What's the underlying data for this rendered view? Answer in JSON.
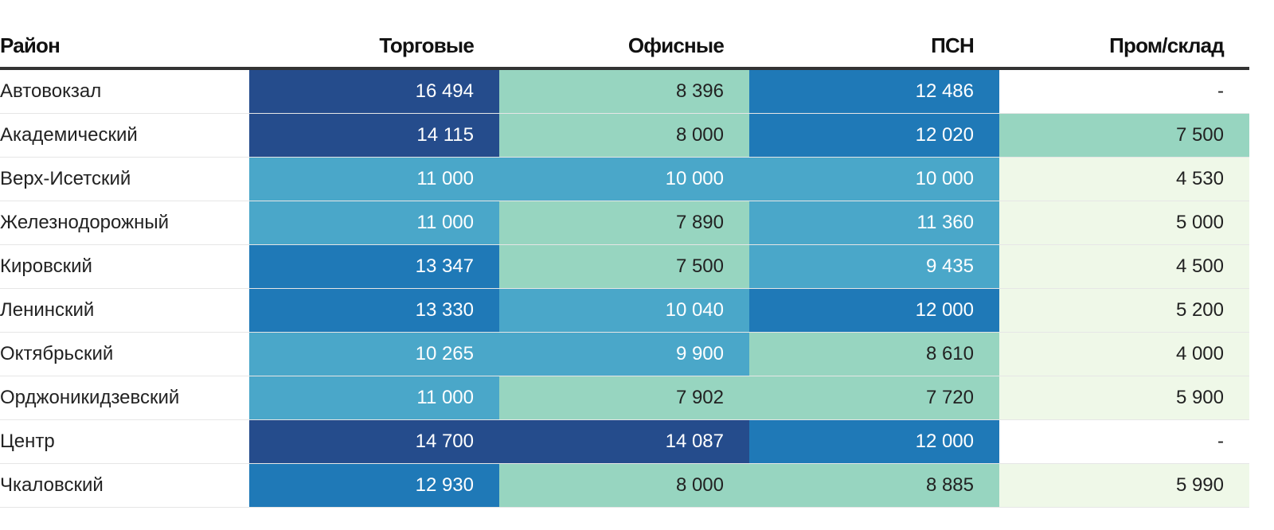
{
  "columns": [
    "Район",
    "Торговые",
    "Офисные",
    "ПСН",
    "Пром/склад"
  ],
  "color_scale": [
    "#ffffff",
    "#eff8e8",
    "#97d5c0",
    "#4aa7c9",
    "#1f79b7",
    "#254c8c"
  ],
  "rows": [
    {
      "name": "Автовокзал",
      "values": [
        "16 494",
        "8 396",
        "12 486",
        "-"
      ],
      "levels": [
        5,
        2,
        4,
        0
      ]
    },
    {
      "name": "Академический",
      "values": [
        "14 115",
        "8 000",
        "12 020",
        "7 500"
      ],
      "levels": [
        5,
        2,
        4,
        2
      ]
    },
    {
      "name": "Верх-Исетский",
      "values": [
        "11 000",
        "10 000",
        "10 000",
        "4 530"
      ],
      "levels": [
        3,
        3,
        3,
        1
      ]
    },
    {
      "name": "Железнодорожный",
      "values": [
        "11 000",
        "7 890",
        "11 360",
        "5 000"
      ],
      "levels": [
        3,
        2,
        3,
        1
      ]
    },
    {
      "name": "Кировский",
      "values": [
        "13 347",
        "7 500",
        "9 435",
        "4 500"
      ],
      "levels": [
        4,
        2,
        3,
        1
      ]
    },
    {
      "name": "Ленинский",
      "values": [
        "13 330",
        "10 040",
        "12 000",
        "5 200"
      ],
      "levels": [
        4,
        3,
        4,
        1
      ]
    },
    {
      "name": "Октябрьский",
      "values": [
        "10 265",
        "9 900",
        "8 610",
        "4 000"
      ],
      "levels": [
        3,
        3,
        2,
        1
      ]
    },
    {
      "name": "Орджоникидзевский",
      "values": [
        "11 000",
        "7 902",
        "7 720",
        "5 900"
      ],
      "levels": [
        3,
        2,
        2,
        1
      ]
    },
    {
      "name": "Центр",
      "values": [
        "14 700",
        "14 087",
        "12 000",
        "-"
      ],
      "levels": [
        5,
        5,
        4,
        0
      ]
    },
    {
      "name": "Чкаловский",
      "values": [
        "12 930",
        "8 000",
        "8 885",
        "5 990"
      ],
      "levels": [
        4,
        2,
        2,
        1
      ]
    }
  ]
}
